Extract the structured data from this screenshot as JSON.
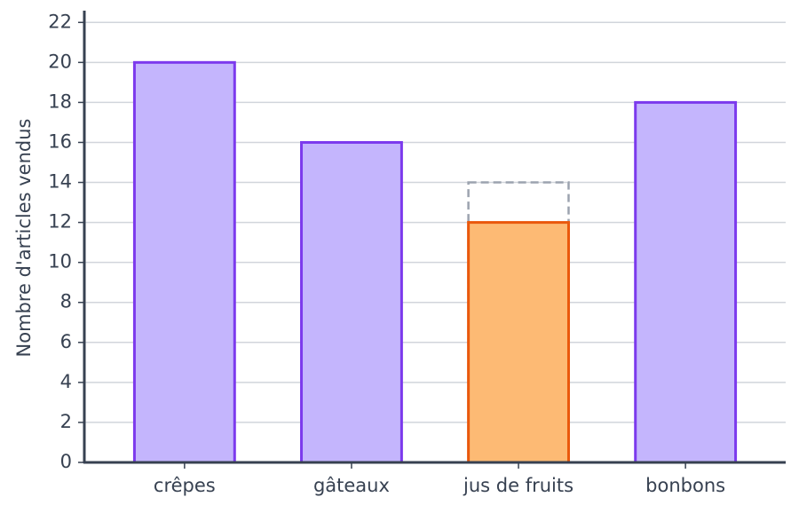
{
  "chart_data": {
    "type": "bar",
    "ylabel": "Nombre d'articles vendus",
    "categories": [
      "crêpes",
      "gâteaux",
      "jus de fruits",
      "bonbons"
    ],
    "values": [
      20,
      16,
      12,
      18
    ],
    "colors": [
      "#c4b5fd",
      "#c4b5fd",
      "#fdba74",
      "#c4b5fd"
    ],
    "edge_colors": [
      "#7c3aed",
      "#7c3aed",
      "#ea580c",
      "#7c3aed"
    ],
    "target_values": [
      null,
      null,
      14,
      null
    ],
    "target_color": "#9ca3af",
    "ylim": [
      0,
      22.5
    ],
    "yticks": [
      0,
      2,
      4,
      6,
      8,
      10,
      12,
      14,
      16,
      18,
      20,
      22
    ],
    "xlim": [
      -0.6,
      3.6
    ],
    "grid": true
  }
}
